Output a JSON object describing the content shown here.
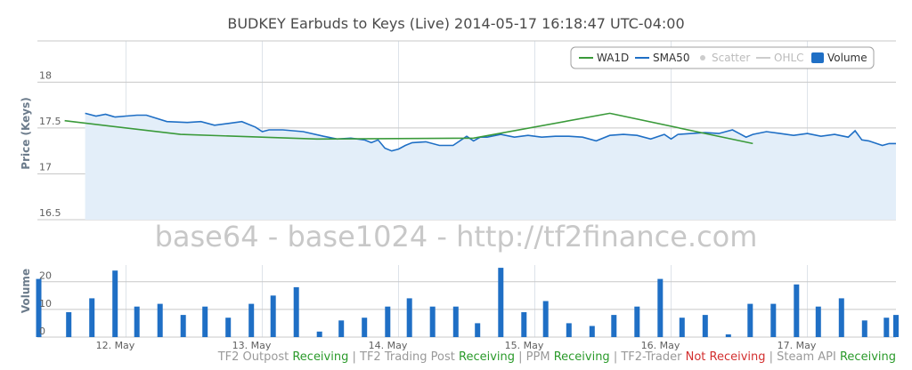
{
  "chart_data": [
    {
      "type": "line",
      "title": "BUDKEY Earbuds to Keys (Live) 2014-05-17 16:18:47 UTC-04:00",
      "ylabel": "Price (Keys)",
      "ylim": [
        16.5,
        18.45
      ],
      "yticks": [
        "16.5",
        "17",
        "17.5",
        "18"
      ],
      "xlim": [
        11.35,
        17.65
      ],
      "legend": {
        "placement": "top-right",
        "items": [
          {
            "name": "WA1D",
            "color": "#3a9a3a",
            "enabled": true,
            "kind": "line"
          },
          {
            "name": "SMA50",
            "color": "#1f6fc5",
            "enabled": true,
            "kind": "line"
          },
          {
            "name": "Scatter",
            "color": "#cccccc",
            "enabled": false,
            "kind": "dot"
          },
          {
            "name": "OHLC",
            "color": "#cccccc",
            "enabled": false,
            "kind": "line"
          },
          {
            "name": "Volume",
            "color": "#1f6fc5",
            "enabled": true,
            "kind": "box"
          }
        ]
      },
      "series": [
        {
          "name": "WA1D",
          "color": "#3a9a3a",
          "x": [
            11.55,
            12.4,
            13.4,
            14.55,
            15.55,
            16.6
          ],
          "values": [
            17.58,
            17.43,
            17.38,
            17.39,
            17.66,
            17.33
          ]
        },
        {
          "name": "SMA50",
          "color": "#1f6fc5",
          "area": true,
          "areaColor": "#e3eef9",
          "x": [
            11.7,
            11.78,
            11.85,
            11.92,
            12.0,
            12.08,
            12.15,
            12.3,
            12.45,
            12.55,
            12.65,
            12.75,
            12.85,
            12.95,
            13.0,
            13.05,
            13.15,
            13.3,
            13.45,
            13.55,
            13.65,
            13.75,
            13.8,
            13.85,
            13.9,
            13.95,
            14.0,
            14.05,
            14.1,
            14.2,
            14.3,
            14.4,
            14.5,
            14.55,
            14.6,
            14.65,
            14.75,
            14.85,
            14.95,
            15.05,
            15.15,
            15.25,
            15.35,
            15.45,
            15.55,
            15.65,
            15.75,
            15.85,
            15.95,
            16.0,
            16.05,
            16.15,
            16.25,
            16.35,
            16.45,
            16.5,
            16.55,
            16.6,
            16.7,
            16.8,
            16.9,
            17.0,
            17.1,
            17.2,
            17.3,
            17.35,
            17.4,
            17.45,
            17.55,
            17.6,
            17.65
          ],
          "values": [
            17.66,
            17.63,
            17.65,
            17.62,
            17.63,
            17.64,
            17.64,
            17.57,
            17.56,
            17.57,
            17.53,
            17.55,
            17.57,
            17.51,
            17.46,
            17.48,
            17.48,
            17.46,
            17.41,
            17.38,
            17.39,
            17.37,
            17.34,
            17.37,
            17.28,
            17.25,
            17.27,
            17.31,
            17.34,
            17.35,
            17.31,
            17.31,
            17.41,
            17.36,
            17.4,
            17.4,
            17.43,
            17.4,
            17.42,
            17.4,
            17.41,
            17.41,
            17.4,
            17.36,
            17.42,
            17.43,
            17.42,
            17.38,
            17.43,
            17.38,
            17.43,
            17.44,
            17.45,
            17.44,
            17.48,
            17.44,
            17.4,
            17.43,
            17.46,
            17.44,
            17.42,
            17.44,
            17.41,
            17.43,
            17.4,
            17.47,
            17.37,
            17.36,
            17.31,
            17.33,
            17.33
          ]
        }
      ]
    },
    {
      "type": "bar",
      "ylabel": "Volume",
      "ylim": [
        0,
        26
      ],
      "yticks": [
        "0",
        "10",
        "20"
      ],
      "xlim": [
        11.35,
        17.65
      ],
      "xticks": [
        "12. May",
        "13. May",
        "14. May",
        "15. May",
        "16. May",
        "17. May"
      ],
      "series": [
        {
          "name": "Volume",
          "color": "#1f6fc5",
          "x": [
            11.36,
            11.58,
            11.75,
            11.92,
            12.08,
            12.25,
            12.42,
            12.58,
            12.75,
            12.92,
            13.08,
            13.25,
            13.42,
            13.58,
            13.75,
            13.92,
            14.08,
            14.25,
            14.42,
            14.58,
            14.75,
            14.92,
            15.08,
            15.25,
            15.42,
            15.58,
            15.75,
            15.92,
            16.08,
            16.25,
            16.42,
            16.58,
            16.75,
            16.92,
            17.08,
            17.25,
            17.42,
            17.58,
            17.65
          ],
          "values": [
            21,
            9,
            14,
            24,
            11,
            12,
            8,
            11,
            7,
            12,
            15,
            18,
            2,
            6,
            7,
            11,
            14,
            11,
            11,
            5,
            25,
            9,
            13,
            5,
            4,
            8,
            11,
            21,
            7,
            8,
            1,
            12,
            12,
            19,
            11,
            14,
            6,
            7,
            8
          ]
        }
      ]
    }
  ],
  "watermark": "base64 - base1024 - http://tf2finance.com",
  "status_bar": [
    {
      "name": "TF2 Outpost",
      "status": "Receiving",
      "color": "#2a9a2a"
    },
    {
      "name": "TF2 Trading Post",
      "status": "Receiving",
      "color": "#2a9a2a"
    },
    {
      "name": "PPM",
      "status": "Receiving",
      "color": "#2a9a2a"
    },
    {
      "name": "TF2-Trader",
      "status": "Not Receiving",
      "color": "#d32f2f"
    },
    {
      "name": "Steam API",
      "status": "Receiving",
      "color": "#2a9a2a"
    }
  ]
}
